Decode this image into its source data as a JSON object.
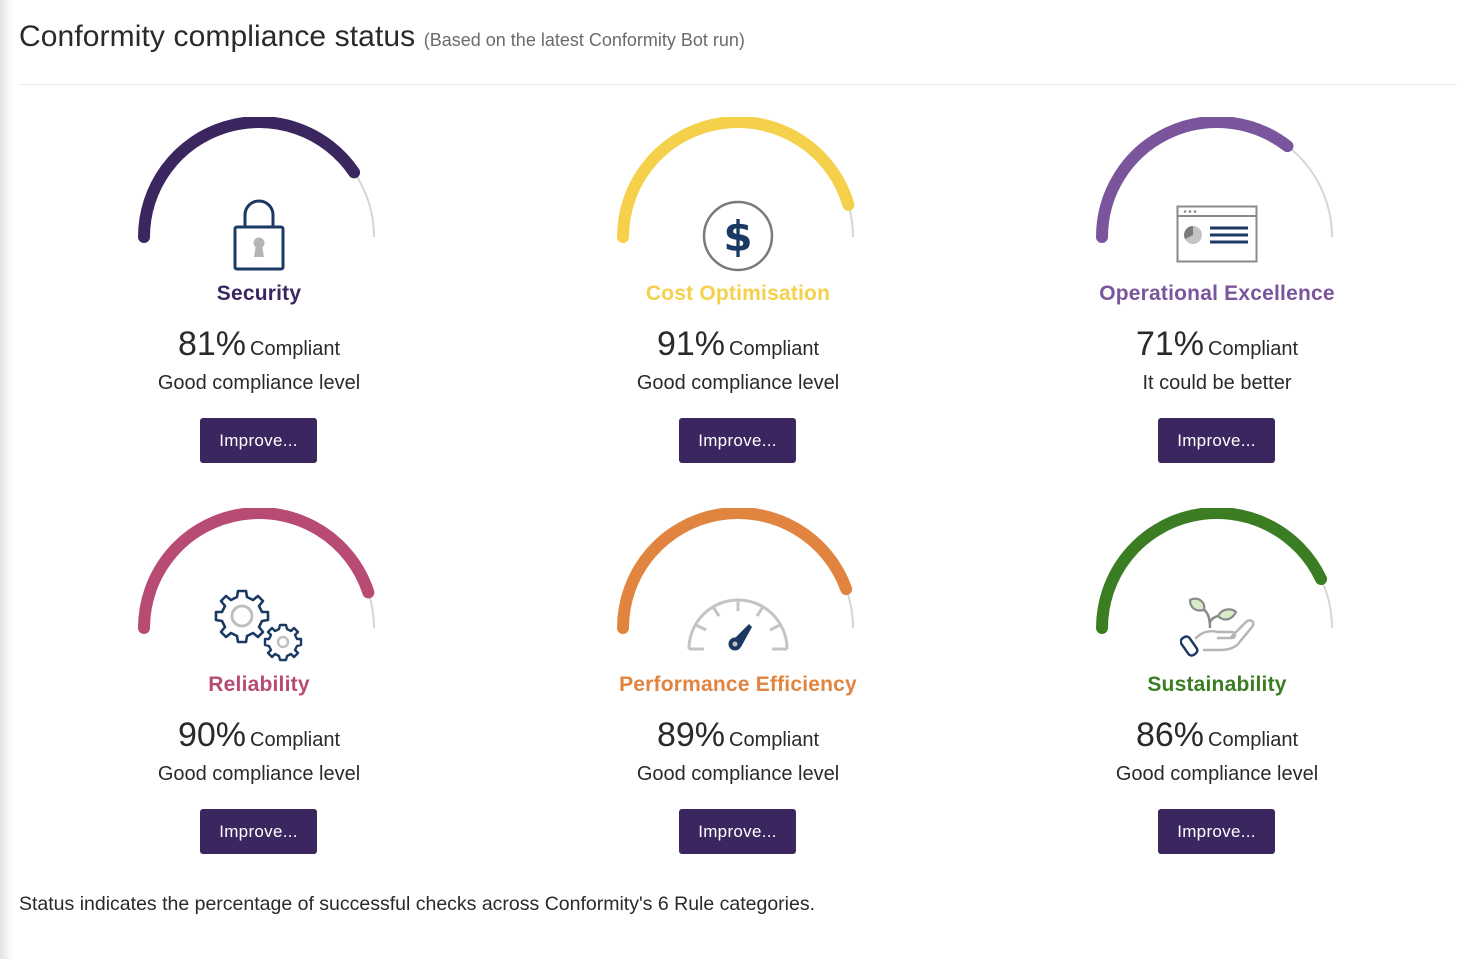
{
  "header": {
    "title": "Conformity compliance status",
    "subtitle": "(Based on the latest Conformity Bot run)"
  },
  "colors": {
    "button_bg": "#3b2660",
    "track": "#d6d6d6",
    "icon_navy": "#1b3a63",
    "icon_gray": "#b5b5b5"
  },
  "categories": [
    {
      "name": "Security",
      "icon": "lock-icon",
      "percent": 81,
      "percent_text": "81%",
      "suffix": "Compliant",
      "level": "Good compliance level",
      "button": "Improve...",
      "color": "#3b2660"
    },
    {
      "name": "Cost Optimisation",
      "icon": "dollar-icon",
      "percent": 91,
      "percent_text": "91%",
      "suffix": "Compliant",
      "level": "Good compliance level",
      "button": "Improve...",
      "color": "#f5d04a"
    },
    {
      "name": "Operational Excellence",
      "icon": "dashboard-window-icon",
      "percent": 71,
      "percent_text": "71%",
      "suffix": "Compliant",
      "level": "It could be better",
      "button": "Improve...",
      "color": "#7b559c"
    },
    {
      "name": "Reliability",
      "icon": "gears-icon",
      "percent": 90,
      "percent_text": "90%",
      "suffix": "Compliant",
      "level": "Good compliance level",
      "button": "Improve...",
      "color": "#b84b74"
    },
    {
      "name": "Performance Efficiency",
      "icon": "speedometer-icon",
      "percent": 89,
      "percent_text": "89%",
      "suffix": "Compliant",
      "level": "Good compliance level",
      "button": "Improve...",
      "color": "#e0843f"
    },
    {
      "name": "Sustainability",
      "icon": "plant-in-hand-icon",
      "percent": 86,
      "percent_text": "86%",
      "suffix": "Compliant",
      "level": "Good compliance level",
      "button": "Improve...",
      "color": "#3a7d23"
    }
  ],
  "footer": {
    "note": "Status indicates the percentage of successful checks across Conformity's 6 Rule categories."
  }
}
